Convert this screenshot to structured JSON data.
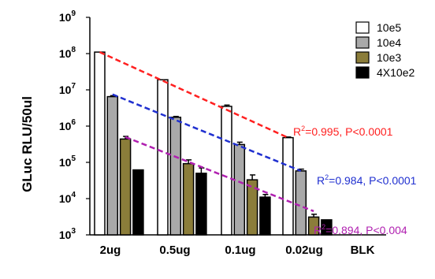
{
  "chart_data": {
    "type": "bar",
    "ylabel": "GLuc RLU/50ul",
    "yscale": "log",
    "ylim": [
      1000,
      1000000000
    ],
    "y_ticks": [
      {
        "exp": 3,
        "label": "10",
        "sup": "3"
      },
      {
        "exp": 4,
        "label": "10",
        "sup": "4"
      },
      {
        "exp": 5,
        "label": "10",
        "sup": "5"
      },
      {
        "exp": 6,
        "label": "10",
        "sup": "6"
      },
      {
        "exp": 7,
        "label": "10",
        "sup": "7"
      },
      {
        "exp": 8,
        "label": "10",
        "sup": "8"
      },
      {
        "exp": 9,
        "label": "10",
        "sup": "9"
      }
    ],
    "categories": [
      "2ug",
      "0.5ug",
      "0.1ug",
      "0.02ug",
      "BLK"
    ],
    "series": [
      {
        "name": "10e5",
        "color": "#ffffff",
        "values": [
          110000000,
          19000000,
          3500000,
          480000,
          950
        ],
        "errors": [
          0,
          0,
          300000,
          20000,
          0
        ]
      },
      {
        "name": "10e4",
        "color": "#a9a9a9",
        "values": [
          6500000,
          1750000,
          310000,
          58000,
          null
        ],
        "errors": [
          400000,
          100000,
          50000,
          7000,
          null
        ]
      },
      {
        "name": "10e3",
        "color": "#8b7d3a",
        "values": [
          440000,
          92000,
          33000,
          3100,
          null
        ],
        "errors": [
          80000,
          25000,
          12000,
          600,
          null
        ]
      },
      {
        "name": "4X10e2",
        "color": "#000000",
        "values": [
          62000,
          50000,
          11000,
          2600,
          null
        ],
        "errors": [
          0,
          20000,
          2000,
          0,
          null
        ]
      }
    ],
    "trendlines": [
      {
        "series": "10e5",
        "color": "#ff2020",
        "from": [
          0,
          110000000
        ],
        "to": [
          3,
          480000
        ],
        "r2_sup": "2",
        "text_pre": "R",
        "text_post": "=0.995, P<0.0001"
      },
      {
        "series": "10e4",
        "color": "#2030d0",
        "from": [
          0,
          7500000
        ],
        "to": [
          3,
          58000
        ],
        "r2_sup": "2",
        "text_pre": "R",
        "text_post": "=0.984, P<0.0001"
      },
      {
        "series": "10e3",
        "color": "#b020b0",
        "from": [
          0,
          500000
        ],
        "to": [
          3,
          4500
        ],
        "r2_sup": "2",
        "text_pre": "R",
        "text_post": "=0.894, P<0.004"
      }
    ],
    "legend_position": "top-right",
    "grid": false
  }
}
